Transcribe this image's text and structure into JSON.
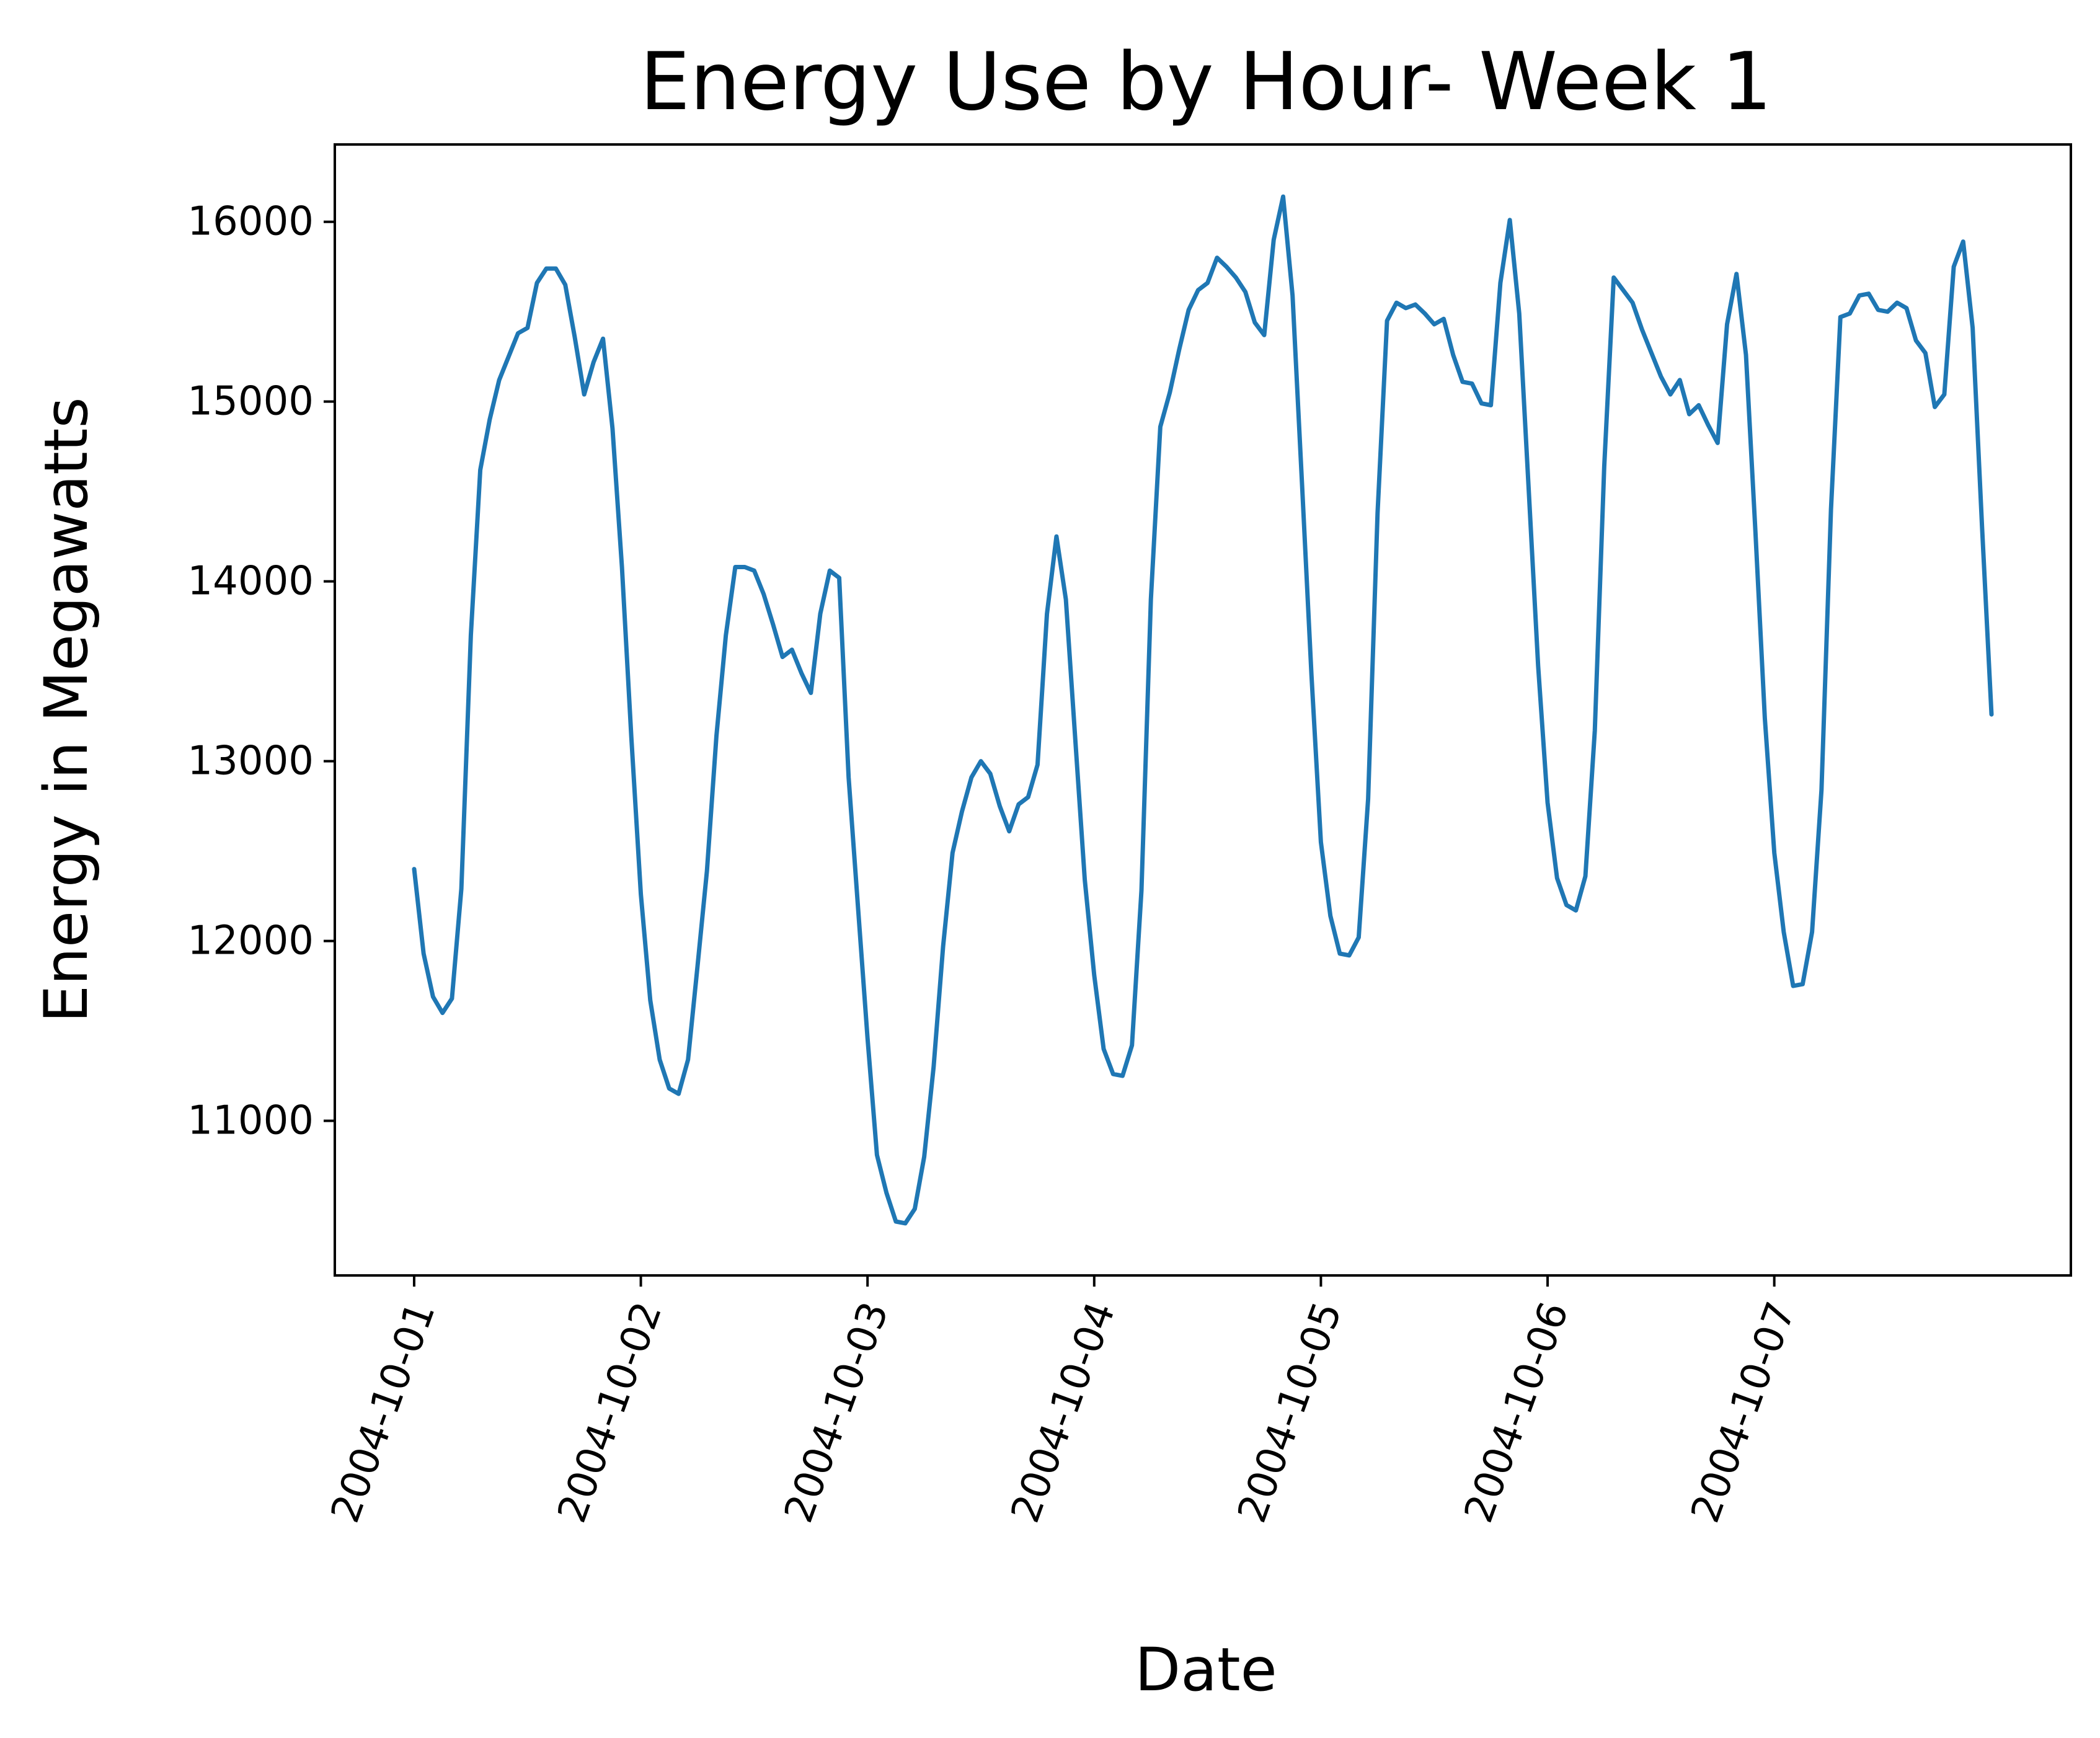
{
  "chart_data": {
    "type": "line",
    "title": "Energy Use by Hour- Week 1",
    "xlabel": "Date",
    "ylabel": "Energy in Megawatts",
    "x_tick_labels": [
      "2004-10-01",
      "2004-10-02",
      "2004-10-03",
      "2004-10-04",
      "2004-10-05",
      "2004-10-06",
      "2004-10-07"
    ],
    "y_ticks": [
      11000,
      12000,
      13000,
      14000,
      15000,
      16000
    ],
    "y_tick_labels": [
      "11000",
      "12000",
      "13000",
      "14000",
      "15000",
      "16000"
    ],
    "xlim_hours": [
      -8.4,
      175.4
    ],
    "ylim": [
      10140,
      16430
    ],
    "grid": false,
    "legend": "none",
    "series": [
      {
        "name": "Energy",
        "color": "#1f77b4",
        "x_unit": "hours since 2004-10-01 00:00",
        "values": [
          12400,
          11930,
          11690,
          11600,
          11680,
          12290,
          13700,
          14620,
          14900,
          15120,
          15250,
          15380,
          15410,
          15660,
          15740,
          15740,
          15650,
          15360,
          15040,
          15220,
          15350,
          14850,
          14080,
          13130,
          12260,
          11670,
          11340,
          11180,
          11150,
          11340,
          11860,
          12390,
          13140,
          13700,
          14080,
          14080,
          14060,
          13930,
          13760,
          13580,
          13620,
          13490,
          13380,
          13820,
          14060,
          14020,
          12910,
          12180,
          11460,
          10810,
          10600,
          10440,
          10430,
          10510,
          10800,
          11300,
          11970,
          12490,
          12720,
          12910,
          13000,
          12930,
          12750,
          12610,
          12760,
          12800,
          12980,
          13820,
          14250,
          13900,
          13120,
          12340,
          11810,
          11400,
          11260,
          11250,
          11420,
          12280,
          13900,
          14860,
          15050,
          15290,
          15510,
          15620,
          15660,
          15800,
          15750,
          15690,
          15610,
          15440,
          15370,
          15900,
          16140,
          15590,
          14540,
          13480,
          12550,
          12140,
          11930,
          11920,
          12020,
          12790,
          14380,
          15450,
          15550,
          15520,
          15540,
          15490,
          15430,
          15460,
          15260,
          15110,
          15100,
          14990,
          14980,
          15660,
          16010,
          15490,
          14510,
          13530,
          12770,
          12350,
          12200,
          12170,
          12360,
          13170,
          14640,
          15690,
          15620,
          15550,
          15400,
          15270,
          15140,
          15040,
          15120,
          14930,
          14980,
          14870,
          14770,
          15430,
          15710,
          15260,
          14280,
          13240,
          12490,
          12050,
          11750,
          11760,
          12050,
          12840,
          14400,
          15470,
          15490,
          15590,
          15600,
          15510,
          15500,
          15550,
          15520,
          15340,
          15270,
          14970,
          15040,
          15750,
          15890,
          15410,
          14300,
          13260
        ]
      }
    ]
  }
}
